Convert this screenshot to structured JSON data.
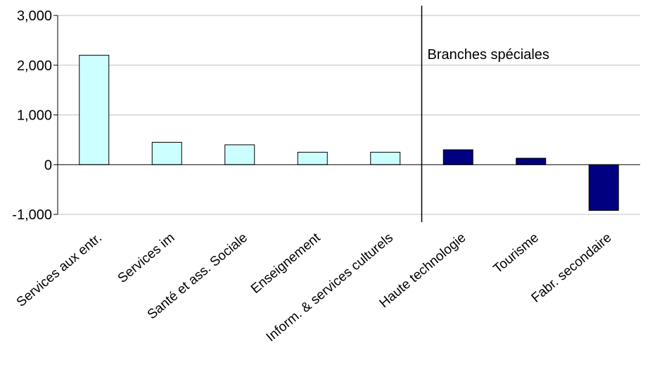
{
  "chart_data": {
    "type": "bar",
    "categories": [
      "Services aux entr.",
      "Services im",
      "Santé et ass. Sociale",
      "Enseignement",
      "Inform. & services culturels",
      "Haute technologie",
      "Tourisme",
      "Fabr. secondaire"
    ],
    "values": [
      2200,
      450,
      400,
      250,
      250,
      300,
      130,
      -920
    ],
    "bar_colors": [
      "#ccffff",
      "#ccffff",
      "#ccffff",
      "#ccffff",
      "#ccffff",
      "#000080",
      "#000080",
      "#000080"
    ],
    "ylim": [
      -1000,
      3000
    ],
    "yticks": [
      {
        "value": -1000,
        "label": "-1,000"
      },
      {
        "value": 0,
        "label": "0"
      },
      {
        "value": 1000,
        "label": "1,000"
      },
      {
        "value": 2000,
        "label": "2,000"
      },
      {
        "value": 3000,
        "label": "3,000"
      }
    ],
    "grid": true,
    "legend": "none",
    "annotations": {
      "divider_after_index": 4,
      "label": "Branches spéciales"
    },
    "colors": {
      "gridline": "#c0c0c0",
      "axis": "#000000",
      "bar_outline": "#000000"
    }
  }
}
